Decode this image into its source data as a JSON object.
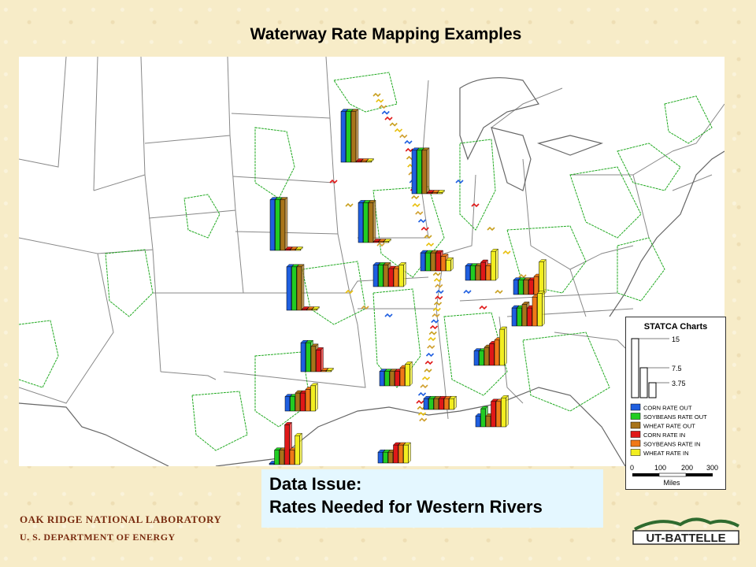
{
  "title": "Waterway Rate Mapping Examples",
  "legend": {
    "title": "STATCA Charts",
    "scale_values": [
      "15",
      "7.5",
      "3.75"
    ],
    "series": [
      {
        "label": "CORN RATE OUT",
        "color": "#1f5fe0"
      },
      {
        "label": "SOYBEANS RATE OUT",
        "color": "#22cc22"
      },
      {
        "label": "WHEAT RATE OUT",
        "color": "#a8741a"
      },
      {
        "label": "CORN RATE IN",
        "color": "#e01818"
      },
      {
        "label": "SOYBEANS RATE IN",
        "color": "#f07818"
      },
      {
        "label": "WHEAT RATE IN",
        "color": "#f2ee20"
      }
    ],
    "scale_bar": {
      "ticks": [
        "0",
        "100",
        "200",
        "300"
      ],
      "unit": "Miles"
    }
  },
  "data_issue": {
    "line1": "Data Issue:",
    "line2": "Rates Needed for Western Rivers"
  },
  "footer": {
    "line1": "OAK RIDGE NATIONAL LABORATORY",
    "line2": "U. S. DEPARTMENT OF ENERGY"
  },
  "logo": {
    "text": "UT-BATTELLE"
  },
  "site_charts": [
    {
      "values": [
        14,
        14,
        14,
        0,
        0,
        0
      ]
    },
    {
      "values": [
        12,
        12,
        12,
        0,
        0,
        0
      ]
    },
    {
      "values": [
        14,
        14,
        14,
        0,
        0,
        0
      ]
    },
    {
      "values": [
        11,
        11,
        11,
        0,
        0,
        0
      ]
    },
    {
      "values": [
        12,
        12,
        12,
        0,
        0,
        0
      ]
    },
    {
      "values": [
        5,
        5,
        5,
        5,
        4,
        3
      ]
    },
    {
      "values": [
        6,
        6,
        6,
        5,
        5,
        6
      ]
    },
    {
      "values": [
        4,
        4,
        4,
        5,
        4,
        8
      ]
    },
    {
      "values": [
        4,
        4,
        4,
        4,
        5,
        9
      ]
    },
    {
      "values": [
        5,
        5,
        6,
        5,
        8,
        9
      ]
    },
    {
      "values": [
        8,
        8,
        7,
        6,
        0,
        0
      ]
    },
    {
      "values": [
        4,
        4,
        4,
        4,
        5,
        6
      ]
    },
    {
      "values": [
        4,
        4,
        5,
        6,
        7,
        10
      ]
    },
    {
      "values": [
        3,
        3,
        3,
        3,
        3,
        3
      ]
    },
    {
      "values": [
        3,
        5,
        3,
        7,
        7,
        8
      ]
    },
    {
      "values": [
        0,
        4,
        4,
        11,
        4,
        8
      ]
    },
    {
      "values": [
        3,
        3,
        3,
        5,
        5,
        5
      ]
    },
    {
      "values": [
        4,
        4,
        5,
        5,
        6,
        7
      ]
    }
  ]
}
